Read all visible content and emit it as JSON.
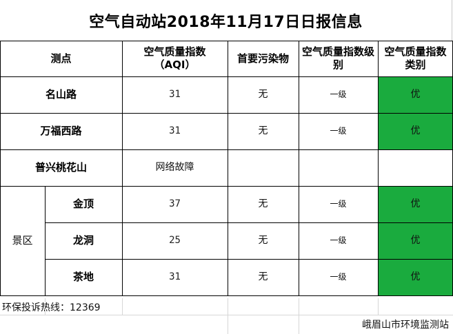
{
  "title": "空气自动站2018年11月17日日报信息",
  "headers": {
    "station": "测点",
    "aqi": "空气质量指数（AQI）",
    "pollutant": "首要污染物",
    "level": "空气质量指数级别",
    "category": "空气质量指数类别"
  },
  "rows": [
    {
      "name": "名山路",
      "aqi": "31",
      "pollutant": "无",
      "level": "一级",
      "category": "优"
    },
    {
      "name": "万福西路",
      "aqi": "31",
      "pollutant": "无",
      "level": "一级",
      "category": "优"
    },
    {
      "name": "普兴桃花山",
      "aqi": "网络故障",
      "pollutant": "",
      "level": "",
      "category": ""
    }
  ],
  "scenic": {
    "group": "景区",
    "rows": [
      {
        "name": "金顶",
        "aqi": "37",
        "pollutant": "无",
        "level": "一级",
        "category": "优"
      },
      {
        "name": "龙洞",
        "aqi": "25",
        "pollutant": "无",
        "level": "一级",
        "category": "优"
      },
      {
        "name": "茶地",
        "aqi": "31",
        "pollutant": "无",
        "level": "一级",
        "category": "优"
      }
    ]
  },
  "footer": {
    "hotline": "环保投诉热线：12369",
    "org": "峨眉山市环境监测站"
  },
  "colors": {
    "good": "#1aab3e"
  }
}
